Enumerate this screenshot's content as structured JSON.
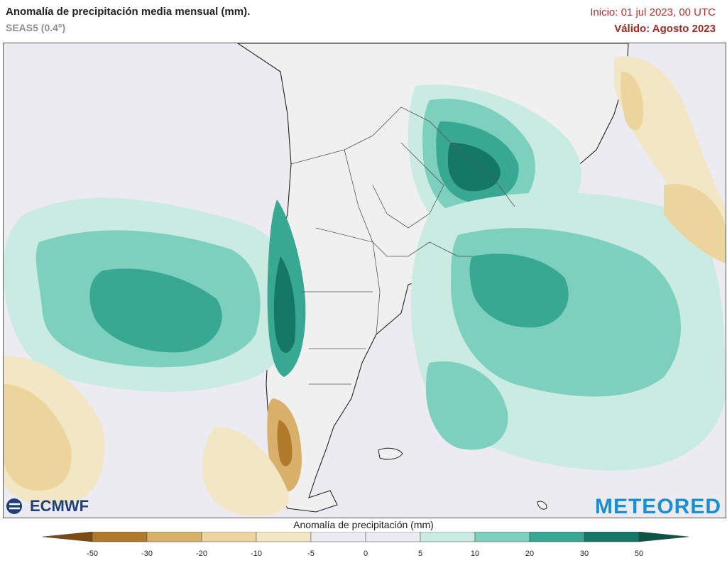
{
  "header": {
    "title": "Anomalía de precipitación media mensual (mm).",
    "model": "SEAS5 (0.4°)",
    "init": "Inicio: 01 jul 2023, 00 UTC",
    "valid": "Válido: Agosto 2023"
  },
  "logos": {
    "left": "ECMWF",
    "right": "METEORED"
  },
  "legend": {
    "title": "Anomalía de precipitación (mm)",
    "ticks": [
      "-50",
      "-30",
      "-20",
      "-10",
      "-5",
      "0",
      "5",
      "10",
      "20",
      "30",
      "50"
    ],
    "colors": [
      "#7a4a10",
      "#b07a2a",
      "#d8b06a",
      "#ecd59c",
      "#f3e6c4",
      "#ecebf2",
      "#ecebf2",
      "#c9ebe2",
      "#7dd0bd",
      "#38a893",
      "#157866",
      "#0b5547"
    ]
  },
  "colors": {
    "ocean_base": "#ecebf2",
    "land": "#f0f0f0",
    "wet_light": "#c9ebe2",
    "wet_mid": "#7dd0bd",
    "wet_strong": "#38a893",
    "wet_max": "#157866",
    "dry_light": "#f3e6c4",
    "dry_mid": "#ecd59c",
    "dry_strong": "#d8b06a",
    "dry_max": "#b07a2a"
  }
}
